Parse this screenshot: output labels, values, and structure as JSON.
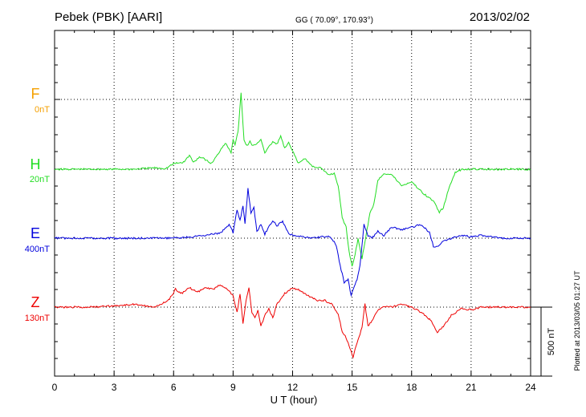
{
  "header": {
    "station": "Pebek (PBK)  [AARI]",
    "coords": "GG ( 70.09°, 170.93°)",
    "date": "2013/02/02"
  },
  "plotted_note": "Plotted at 2013/03/05 01:27 UT",
  "scale_bar_label": "500 nT",
  "chart_data": {
    "type": "line",
    "xlabel": "U T (hour)",
    "xlim": [
      0,
      24
    ],
    "xticks": [
      0,
      3,
      6,
      9,
      12,
      15,
      18,
      21,
      24
    ],
    "tick_labels": [
      "0",
      "3",
      "6",
      "9",
      "12",
      "15",
      "18",
      "21",
      "24"
    ],
    "grid": true,
    "series": [
      {
        "name": "F",
        "scale": "0nT",
        "color": "#f5a000",
        "x": [],
        "y": []
      },
      {
        "name": "H",
        "scale": "20nT",
        "color": "#22dd22",
        "x": [
          0,
          1,
          2,
          3,
          4,
          5,
          5.6,
          6,
          6.5,
          6.8,
          7.0,
          7.3,
          7.6,
          7.9,
          8.2,
          8.4,
          8.6,
          8.8,
          8.9,
          9.0,
          9.1,
          9.25,
          9.4,
          9.55,
          9.7,
          9.85,
          10.0,
          10.2,
          10.4,
          10.6,
          10.8,
          11.0,
          11.2,
          11.4,
          11.6,
          11.8,
          12.0,
          12.3,
          12.6,
          13.0,
          13.4,
          13.8,
          14.1,
          14.3,
          14.5,
          14.7,
          14.85,
          15.0,
          15.15,
          15.3,
          15.5,
          15.7,
          15.9,
          16.1,
          16.3,
          16.6,
          17.0,
          17.5,
          18.0,
          18.4,
          18.8,
          19.1,
          19.4,
          19.6,
          19.9,
          20.2,
          20.6,
          21.0,
          21.5,
          22,
          23,
          24
        ],
        "y": [
          0,
          0,
          0,
          0,
          0,
          10,
          5,
          40,
          50,
          100,
          50,
          90,
          70,
          40,
          100,
          150,
          190,
          150,
          120,
          220,
          180,
          270,
          550,
          210,
          170,
          200,
          170,
          180,
          220,
          120,
          160,
          200,
          180,
          240,
          150,
          190,
          130,
          40,
          80,
          20,
          10,
          -40,
          -30,
          -120,
          -350,
          -420,
          -600,
          -700,
          -620,
          -500,
          -650,
          -480,
          -320,
          -250,
          -80,
          -30,
          -40,
          -120,
          -90,
          -150,
          -200,
          -230,
          -310,
          -280,
          -130,
          -20,
          0,
          0,
          0,
          0,
          0,
          0
        ]
      },
      {
        "name": "E",
        "scale": "400nT",
        "color": "#0000dd",
        "x": [
          0,
          1,
          2,
          3,
          4,
          5,
          6,
          7,
          7.5,
          8,
          8.4,
          8.8,
          9.0,
          9.2,
          9.35,
          9.5,
          9.6,
          9.75,
          9.9,
          10.05,
          10.2,
          10.4,
          10.6,
          10.8,
          11.0,
          11.2,
          11.5,
          11.8,
          12.1,
          12.5,
          13.0,
          13.5,
          13.9,
          14.2,
          14.4,
          14.6,
          14.8,
          14.95,
          15.1,
          15.25,
          15.4,
          15.6,
          15.8,
          16.0,
          16.3,
          16.6,
          17.0,
          17.5,
          18.0,
          18.5,
          18.9,
          19.1,
          19.3,
          19.6,
          20.0,
          20.5,
          21,
          21.5,
          22,
          22.5,
          23,
          24
        ],
        "y": [
          0,
          0,
          0,
          0,
          0,
          0,
          0,
          10,
          20,
          30,
          40,
          100,
          40,
          210,
          130,
          240,
          100,
          360,
          180,
          220,
          50,
          100,
          30,
          80,
          130,
          90,
          120,
          30,
          20,
          10,
          0,
          10,
          10,
          -50,
          -200,
          -320,
          -300,
          -420,
          -350,
          -300,
          -200,
          100,
          20,
          0,
          50,
          20,
          80,
          60,
          80,
          100,
          40,
          -60,
          -60,
          -20,
          0,
          20,
          10,
          20,
          10,
          0,
          0,
          0
        ]
      },
      {
        "name": "Z",
        "scale": "130nT",
        "color": "#ee0000",
        "x": [
          0,
          1,
          2,
          3,
          4,
          4.5,
          5,
          5.4,
          5.8,
          6.1,
          6.4,
          6.8,
          7.2,
          7.6,
          8.0,
          8.3,
          8.6,
          8.8,
          9.0,
          9.2,
          9.35,
          9.5,
          9.65,
          9.8,
          9.95,
          10.1,
          10.25,
          10.4,
          10.6,
          10.8,
          11.0,
          11.2,
          11.4,
          11.6,
          12.0,
          12.4,
          12.8,
          13.2,
          13.6,
          14.0,
          14.3,
          14.5,
          14.7,
          14.9,
          15.05,
          15.2,
          15.35,
          15.5,
          15.65,
          15.8,
          16.0,
          16.3,
          16.6,
          17.0,
          17.5,
          18.0,
          18.5,
          19.0,
          19.3,
          19.6,
          20.0,
          20.5,
          21.0,
          21.5,
          22,
          22.5,
          23,
          24
        ],
        "y": [
          0,
          0,
          0,
          10,
          20,
          10,
          0,
          20,
          60,
          130,
          100,
          140,
          110,
          140,
          130,
          160,
          140,
          120,
          80,
          -40,
          100,
          -120,
          40,
          140,
          -40,
          -80,
          -20,
          -140,
          -60,
          -10,
          -80,
          20,
          60,
          100,
          140,
          120,
          80,
          50,
          50,
          20,
          -50,
          -180,
          -220,
          -300,
          -360,
          -280,
          -220,
          -150,
          20,
          -140,
          -100,
          -20,
          0,
          0,
          20,
          0,
          -40,
          -100,
          -180,
          -140,
          -60,
          -10,
          -20,
          0,
          0,
          0,
          0,
          0
        ]
      }
    ]
  }
}
